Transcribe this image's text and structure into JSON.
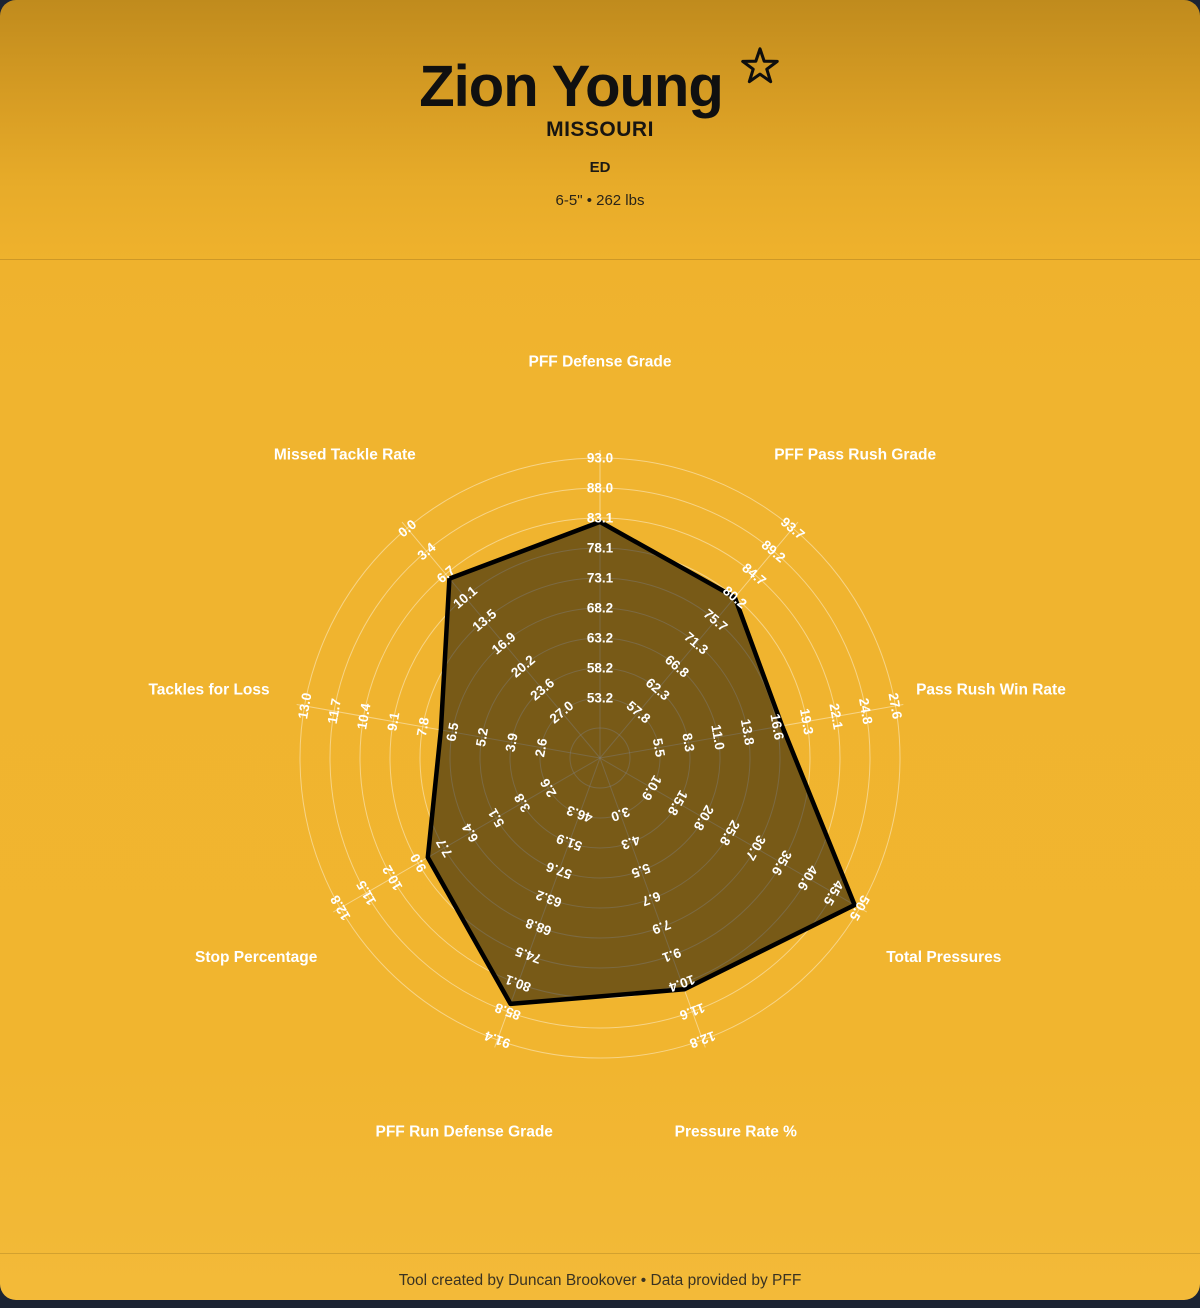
{
  "header": {
    "player_name": "Zion Young",
    "school": "MISSOURI",
    "position": "ED",
    "measurables": "6-5\" • 262 lbs"
  },
  "footer": {
    "credit": "Tool created by Duncan Brookover • Data provided by PFF"
  },
  "colors": {
    "page_background": "#1c2433",
    "card_gold": "#f0b42f",
    "card_gradient_top": "#c08b1d",
    "header_text": "#101010",
    "chart_text": "#ffffff",
    "footer_text": "#3a3322"
  },
  "chart_data": {
    "type": "radar",
    "angle_step_deg": 40,
    "grid": true,
    "grid_color": "#ffffff",
    "polygon_fill": "#000000",
    "polygon_fill_opacity": 0.5,
    "polygon_stroke": "#000000",
    "axes": [
      {
        "label": "PFF Defense Grade",
        "ticks": [
          53.2,
          58.2,
          63.2,
          68.2,
          73.1,
          78.1,
          83.1,
          88.0,
          93.0
        ],
        "value": 82.4
      },
      {
        "label": "PFF Pass Rush Grade",
        "ticks": [
          57.8,
          62.3,
          66.8,
          71.3,
          75.7,
          80.2,
          84.7,
          89.2,
          93.7
        ],
        "value": 80.2
      },
      {
        "label": "Pass Rush Win Rate",
        "ticks": [
          5.5,
          8.3,
          11.0,
          13.8,
          16.6,
          19.3,
          22.1,
          24.8,
          27.6
        ],
        "value": 17.0
      },
      {
        "label": "Total Pressures",
        "ticks": [
          10.9,
          15.8,
          20.8,
          25.8,
          30.7,
          35.6,
          40.6,
          45.5,
          50.5
        ],
        "value": 49.5
      },
      {
        "label": "Pressure Rate %",
        "ticks": [
          3.0,
          4.3,
          5.5,
          6.7,
          7.9,
          9.1,
          10.4,
          11.6,
          12.8
        ],
        "value": 10.6
      },
      {
        "label": "PFF Run Defense Grade",
        "ticks": [
          46.3,
          51.9,
          57.6,
          63.2,
          68.8,
          74.5,
          80.1,
          85.8,
          91.4
        ],
        "value": 84.2
      },
      {
        "label": "Stop Percentage",
        "ticks": [
          2.6,
          3.8,
          5.1,
          6.4,
          7.7,
          9.0,
          10.2,
          11.5,
          12.8
        ],
        "value": 8.5
      },
      {
        "label": "Tackles for Loss",
        "ticks": [
          2.6,
          3.9,
          5.2,
          6.5,
          7.8,
          9.1,
          10.4,
          11.7,
          13.0
        ],
        "value": 7.0
      },
      {
        "label": "Missed Tackle Rate",
        "ticks": [
          27.0,
          23.6,
          20.2,
          16.9,
          13.5,
          10.1,
          6.7,
          3.4,
          0.0
        ],
        "value": 7.4,
        "inverted": true
      }
    ]
  }
}
